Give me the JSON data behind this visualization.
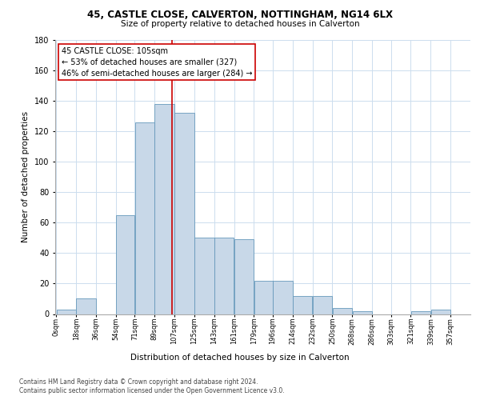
{
  "title1": "45, CASTLE CLOSE, CALVERTON, NOTTINGHAM, NG14 6LX",
  "title2": "Size of property relative to detached houses in Calverton",
  "xlabel": "Distribution of detached houses by size in Calverton",
  "ylabel": "Number of detached properties",
  "footnote1": "Contains HM Land Registry data © Crown copyright and database right 2024.",
  "footnote2": "Contains public sector information licensed under the Open Government Licence v3.0.",
  "annotation_line1": "45 CASTLE CLOSE: 105sqm",
  "annotation_line2": "← 53% of detached houses are smaller (327)",
  "annotation_line3": "46% of semi-detached houses are larger (284) →",
  "property_size": 105,
  "bar_left_edges": [
    0,
    18,
    36,
    54,
    71,
    89,
    107,
    125,
    143,
    161,
    179,
    196,
    214,
    232,
    250,
    268,
    286,
    303,
    321,
    339
  ],
  "bar_widths": [
    18,
    18,
    18,
    17,
    18,
    18,
    18,
    18,
    18,
    18,
    17,
    18,
    18,
    18,
    18,
    18,
    17,
    18,
    18,
    18
  ],
  "bar_heights": [
    3,
    10,
    0,
    65,
    126,
    138,
    132,
    50,
    50,
    49,
    22,
    22,
    12,
    12,
    4,
    2,
    0,
    0,
    2,
    3
  ],
  "bar_color": "#c8d8e8",
  "bar_edge_color": "#6699bb",
  "vline_x": 105,
  "vline_color": "#cc0000",
  "tick_labels": [
    "0sqm",
    "18sqm",
    "36sqm",
    "54sqm",
    "71sqm",
    "89sqm",
    "107sqm",
    "125sqm",
    "143sqm",
    "161sqm",
    "179sqm",
    "196sqm",
    "214sqm",
    "232sqm",
    "250sqm",
    "268sqm",
    "286sqm",
    "303sqm",
    "321sqm",
    "339sqm",
    "357sqm"
  ],
  "ylim": [
    0,
    180
  ],
  "yticks": [
    0,
    20,
    40,
    60,
    80,
    100,
    120,
    140,
    160,
    180
  ],
  "grid_color": "#ccddee",
  "background_color": "#ffffff",
  "annotation_box_color": "#ffffff",
  "annotation_box_edge": "#cc0000",
  "title1_fontsize": 8.5,
  "title2_fontsize": 7.5,
  "xlabel_fontsize": 7.5,
  "ylabel_fontsize": 7.5,
  "tick_fontsize": 6.0,
  "ytick_fontsize": 7.0,
  "footnote_fontsize": 5.5,
  "annotation_fontsize": 7.0
}
